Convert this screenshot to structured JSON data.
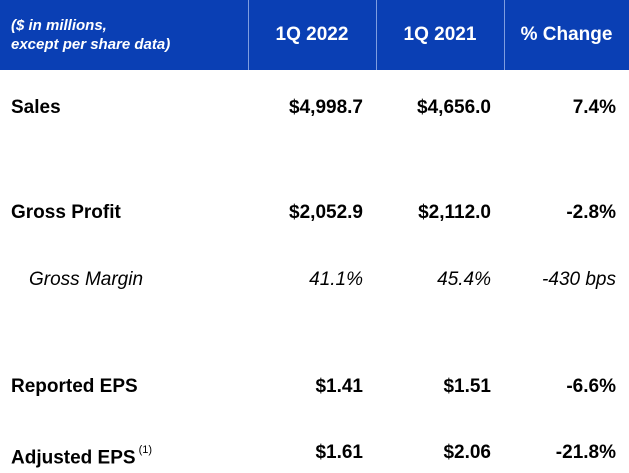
{
  "header": {
    "label_line1": "($ in millions,",
    "label_line2": "except per share data)",
    "col1": "1Q 2022",
    "col2": "1Q 2021",
    "col3": "% Change"
  },
  "rows": [
    {
      "label": "Sales",
      "v2022": "$4,998.7",
      "v2021": "$4,656.0",
      "change": "7.4%"
    },
    {
      "label": "Gross Profit",
      "v2022": "$2,052.9",
      "v2021": "$2,112.0",
      "change": "-2.8%"
    },
    {
      "label": "Gross Margin",
      "v2022": "41.1%",
      "v2021": "45.4%",
      "change": "-430 bps"
    },
    {
      "label": "Reported EPS",
      "v2022": "$1.41",
      "v2021": "$1.51",
      "change": "-6.6%"
    },
    {
      "label": "Adjusted EPS",
      "footnote": "(1)",
      "v2022": "$1.61",
      "v2021": "$2.06",
      "change": "-21.8%"
    }
  ],
  "colors": {
    "header_bg": "#0a3fb4",
    "header_text": "#ffffff",
    "body_text": "#000000"
  }
}
